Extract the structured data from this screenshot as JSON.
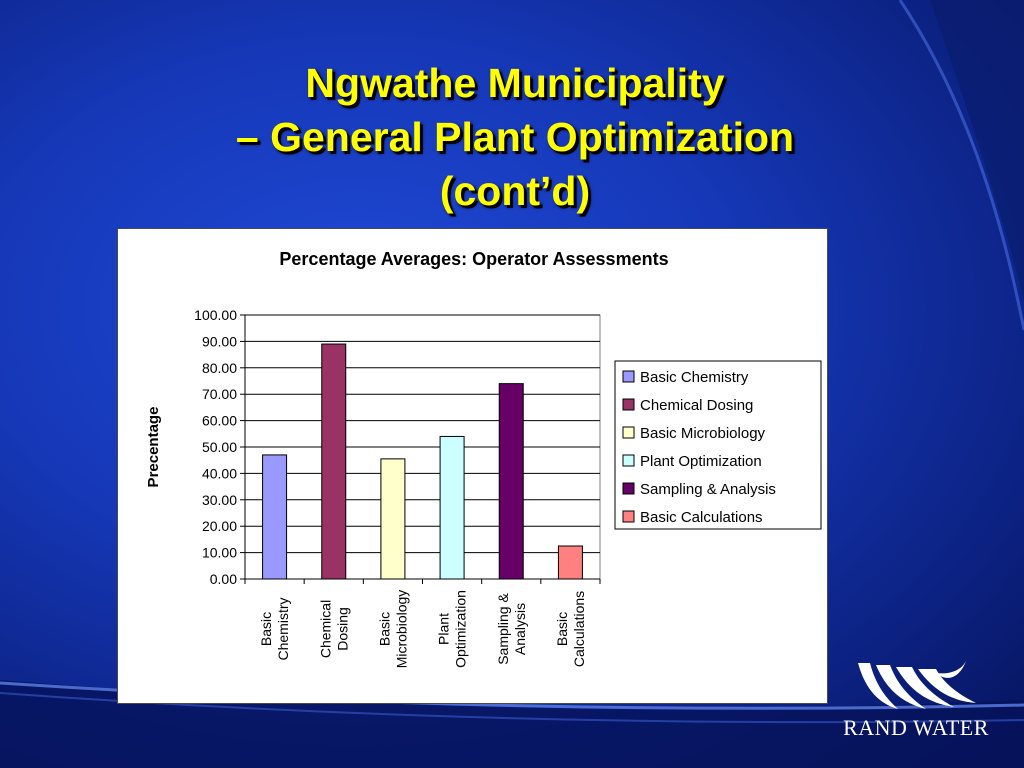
{
  "slide": {
    "title_line1": "Ngwathe Municipality",
    "title_line2": "– General Plant Optimization",
    "title_line3": "(cont’d)"
  },
  "logo": {
    "text": "RAND WATER"
  },
  "chart_data": {
    "type": "bar",
    "title": "Percentage Averages: Operator Assessments",
    "ylabel": "Precentage",
    "xlabel": "",
    "ylim": [
      0,
      100
    ],
    "yticks": [
      "0.00",
      "10.00",
      "20.00",
      "30.00",
      "40.00",
      "50.00",
      "60.00",
      "70.00",
      "80.00",
      "90.00",
      "100.00"
    ],
    "grid": true,
    "legend_position": "right",
    "categories": [
      [
        "Basic",
        "Chemistry"
      ],
      [
        "Chemical",
        "Dosing"
      ],
      [
        "Basic",
        "Microbiology"
      ],
      [
        "Plant",
        "Optimization"
      ],
      [
        "Sampling &",
        "Analysis"
      ],
      [
        "Basic",
        "Calculations"
      ]
    ],
    "series": [
      {
        "name": "Basic Chemistry",
        "value": 47,
        "color": "#9999ff"
      },
      {
        "name": "Chemical Dosing",
        "value": 89,
        "color": "#993366"
      },
      {
        "name": "Basic Microbiology",
        "value": 45.5,
        "color": "#ffffcc"
      },
      {
        "name": "Plant Optimization",
        "value": 54,
        "color": "#ccffff"
      },
      {
        "name": "Sampling & Analysis",
        "value": 74,
        "color": "#660066"
      },
      {
        "name": "Basic Calculations",
        "value": 12.5,
        "color": "#ff8080"
      }
    ]
  }
}
